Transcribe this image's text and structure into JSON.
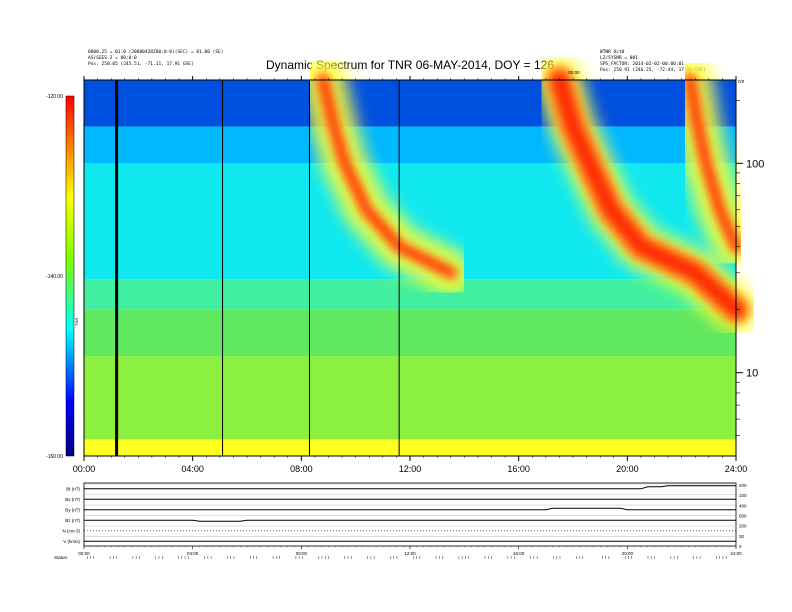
{
  "header": {
    "title": "Dynamic Spectrum for TNR 06-MAY-2014, DOY = 126",
    "left_meta": [
      "0800.25 = 01:0 (20080428Z00:0:0)(SEC) = 01.00 (SE)",
      "AS/SEES 2 = 00:0:0",
      "Pos:   250.05 (245.51, -71.11, 17.91 GSE)"
    ],
    "right_meta": [
      "WTNR Oct0",
      "LZ/SYSNR = 001",
      "SPS_FACTOR: 2014-02-02-00:00:01",
      "Pos:   250.91 (246.25, -72.44, 17.95 GSE)"
    ],
    "right_top_mark": "0/0",
    "small_mark": "00/00"
  },
  "chart_data": {
    "type": "heatmap",
    "title": "Dynamic Spectrum for TNR 06-MAY-2014, DOY = 126",
    "x_tick_labels": [
      "00:00",
      "04:00",
      "08:00",
      "12:00",
      "16:00",
      "20:00",
      "24:00"
    ],
    "x_ticks_hours": [
      0,
      4,
      8,
      12,
      16,
      20,
      24
    ],
    "xlim_hours": [
      0,
      24
    ],
    "y_scale": "log",
    "ylim_khz": [
      4,
      250
    ],
    "y_tick_labels": [
      "10",
      "100"
    ],
    "y_ticks_khz": [
      10,
      100
    ],
    "colorbar": {
      "tick_labels": [
        "-120.00",
        "-140.00",
        "-160.00"
      ],
      "tick_values": [
        -120,
        -140,
        -160
      ],
      "range": [
        -160,
        -120
      ],
      "label": "dB",
      "colors": [
        "#000080",
        "#0000ff",
        "#00ffff",
        "#80ff00",
        "#ffff00",
        "#ff8000",
        "#ff0000"
      ]
    },
    "background_bands": [
      {
        "khz_low": 4,
        "khz_high": 4.8,
        "color": "#ffff20"
      },
      {
        "khz_low": 4.8,
        "khz_high": 12,
        "color": "#8cf040"
      },
      {
        "khz_low": 12,
        "khz_high": 20,
        "color": "#60e860"
      },
      {
        "khz_low": 20,
        "khz_high": 28,
        "color": "#40f0a0"
      },
      {
        "khz_low": 28,
        "khz_high": 100,
        "color": "#10e8f0"
      },
      {
        "khz_low": 100,
        "khz_high": 150,
        "color": "#00b8ff"
      },
      {
        "khz_low": 150,
        "khz_high": 250,
        "color": "#0050e0"
      }
    ],
    "black_lines_hours": [
      1.2,
      5.1,
      8.3,
      11.6
    ],
    "bursts": [
      {
        "name": "type-III-early",
        "start_hour": 8.8,
        "freq_curve": [
          [
            250,
            8.8
          ],
          [
            150,
            9.2
          ],
          [
            100,
            9.6
          ],
          [
            60,
            10.4
          ],
          [
            40,
            11.6
          ],
          [
            30,
            13.5
          ]
        ]
      },
      {
        "name": "type-III-main",
        "start_hour": 17.4,
        "freq_curve": [
          [
            250,
            17.5
          ],
          [
            150,
            18.0
          ],
          [
            100,
            18.6
          ],
          [
            60,
            19.4
          ],
          [
            40,
            20.5
          ],
          [
            30,
            22.5
          ],
          [
            20,
            24.0
          ]
        ]
      },
      {
        "name": "type-III-late",
        "start_hour": 22.3,
        "freq_curve": [
          [
            250,
            22.3
          ],
          [
            150,
            22.6
          ],
          [
            100,
            22.9
          ],
          [
            60,
            23.4
          ],
          [
            40,
            24.0
          ]
        ]
      }
    ],
    "annotation_top": "00:00",
    "tnr_label": "TNR"
  },
  "panel2": {
    "row_labels": [
      "Bt (nT)",
      "Bx (nT)",
      "By (nT)",
      "Bz (nT)",
      "N (cm-3)",
      "V (km/s)"
    ],
    "right_labels": [
      "200",
      "100",
      "400",
      "500",
      "200",
      "30",
      "0"
    ],
    "x_tick_labels": [
      "00:00",
      "04:00",
      "08:00",
      "12:00",
      "16:00",
      "20:00",
      "24:00"
    ],
    "footer": "Status:"
  }
}
